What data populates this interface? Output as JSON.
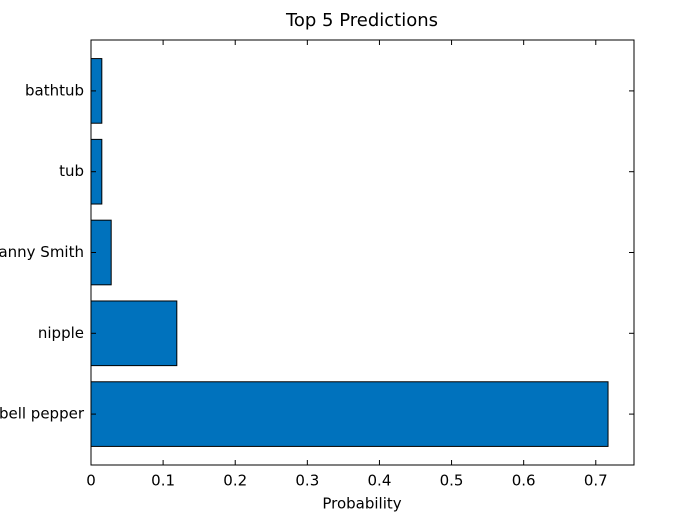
{
  "chart_data": {
    "type": "barh",
    "title": "Top 5 Predictions",
    "x_label": "Probability",
    "categories": [
      "bell pepper",
      "nipple",
      "Granny Smith",
      "tub",
      "bathtub"
    ],
    "values": [
      0.717,
      0.119,
      0.028,
      0.015,
      0.015
    ],
    "color": "#0072bd",
    "edge_color": "#000000",
    "xlim": [
      0,
      0.753
    ],
    "xticks": [
      0,
      0.1,
      0.2,
      0.3,
      0.4,
      0.5,
      0.6,
      0.7
    ],
    "grid": false
  }
}
